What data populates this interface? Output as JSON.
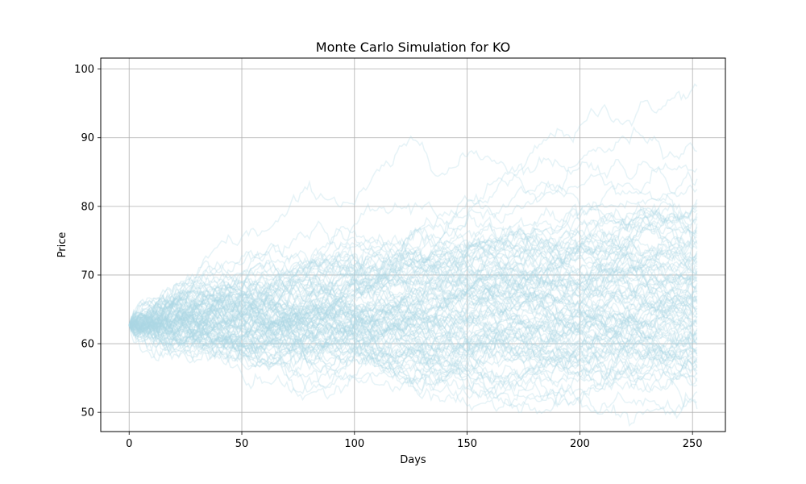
{
  "chart_data": {
    "type": "line",
    "title": "Monte Carlo Simulation for KO",
    "xlabel": "Days",
    "ylabel": "Price",
    "xlim": [
      -12.6,
      264.6
    ],
    "ylim": [
      47.2,
      101.6
    ],
    "xticks": [
      0,
      50,
      100,
      150,
      200,
      250
    ],
    "yticks": [
      50,
      60,
      70,
      80,
      90,
      100
    ],
    "grid": true,
    "legend": "none",
    "line_color": "#add8e6",
    "line_opacity": 0.3,
    "num_days": 252,
    "start_price": 62.7,
    "num_series": 100,
    "series_final_values": [
      97.5,
      88.0,
      85.5,
      84.0,
      82.5,
      81.0,
      80.0,
      79.0,
      78.0,
      77.5,
      77.0,
      76.0,
      75.5,
      75.0,
      74.5,
      74.0,
      73.5,
      73.0,
      72.5,
      72.0,
      71.5,
      71.0,
      70.5,
      70.0,
      69.5,
      69.0,
      68.5,
      68.0,
      67.5,
      67.0,
      66.5,
      66.0,
      65.5,
      65.0,
      64.5,
      64.0,
      63.5,
      63.0,
      62.5,
      62.0,
      61.5,
      61.0,
      60.5,
      60.0,
      59.5,
      59.0,
      58.5,
      58.0,
      57.5,
      57.0,
      56.5,
      56.0,
      55.5,
      55.0,
      54.5,
      54.0,
      53.0,
      51.5,
      50.5,
      73.8,
      71.2,
      69.8,
      68.2,
      66.8,
      65.2,
      63.8,
      62.2,
      60.8,
      59.2,
      57.8,
      72.8,
      70.6,
      67.7,
      64.6,
      61.6,
      58.6,
      76.5,
      78.5,
      74.8,
      69.3,
      66.2,
      63.2,
      60.2,
      57.2,
      55.8,
      75.8,
      73.2,
      70.2,
      68.8,
      65.8,
      62.8,
      59.8,
      80.5,
      79.5,
      61.2,
      64.2,
      67.2,
      71.8,
      56.8,
      58.2
    ]
  }
}
